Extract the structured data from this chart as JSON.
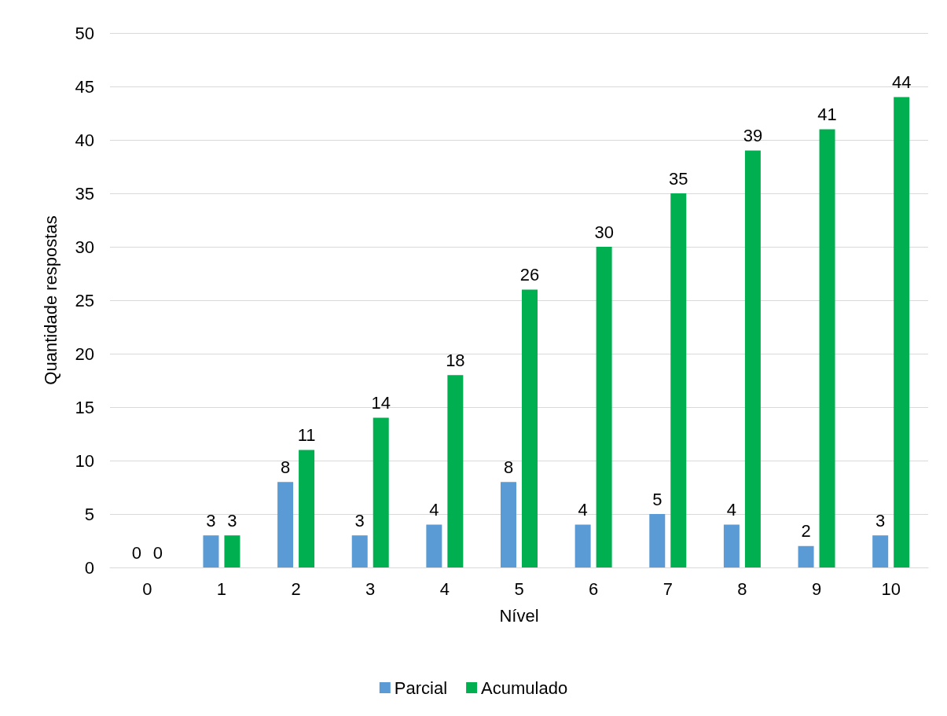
{
  "chart_data": {
    "type": "bar",
    "xlabel": "Nível",
    "ylabel": "Quantidade respostas",
    "categories": [
      "0",
      "1",
      "2",
      "3",
      "4",
      "5",
      "6",
      "7",
      "8",
      "9",
      "10"
    ],
    "series": [
      {
        "name": "Parcial",
        "color": "#5b9bd5",
        "values": [
          0,
          3,
          8,
          3,
          4,
          8,
          4,
          5,
          4,
          2,
          3
        ]
      },
      {
        "name": "Acumulado",
        "color": "#00b050",
        "values": [
          0,
          3,
          11,
          14,
          18,
          26,
          30,
          35,
          39,
          41,
          44
        ]
      }
    ],
    "ylim": [
      0,
      50
    ],
    "yticks": [
      0,
      5,
      10,
      15,
      20,
      25,
      30,
      35,
      40,
      45,
      50
    ],
    "grid": "y",
    "legend": "bottom",
    "data_labels": true
  }
}
